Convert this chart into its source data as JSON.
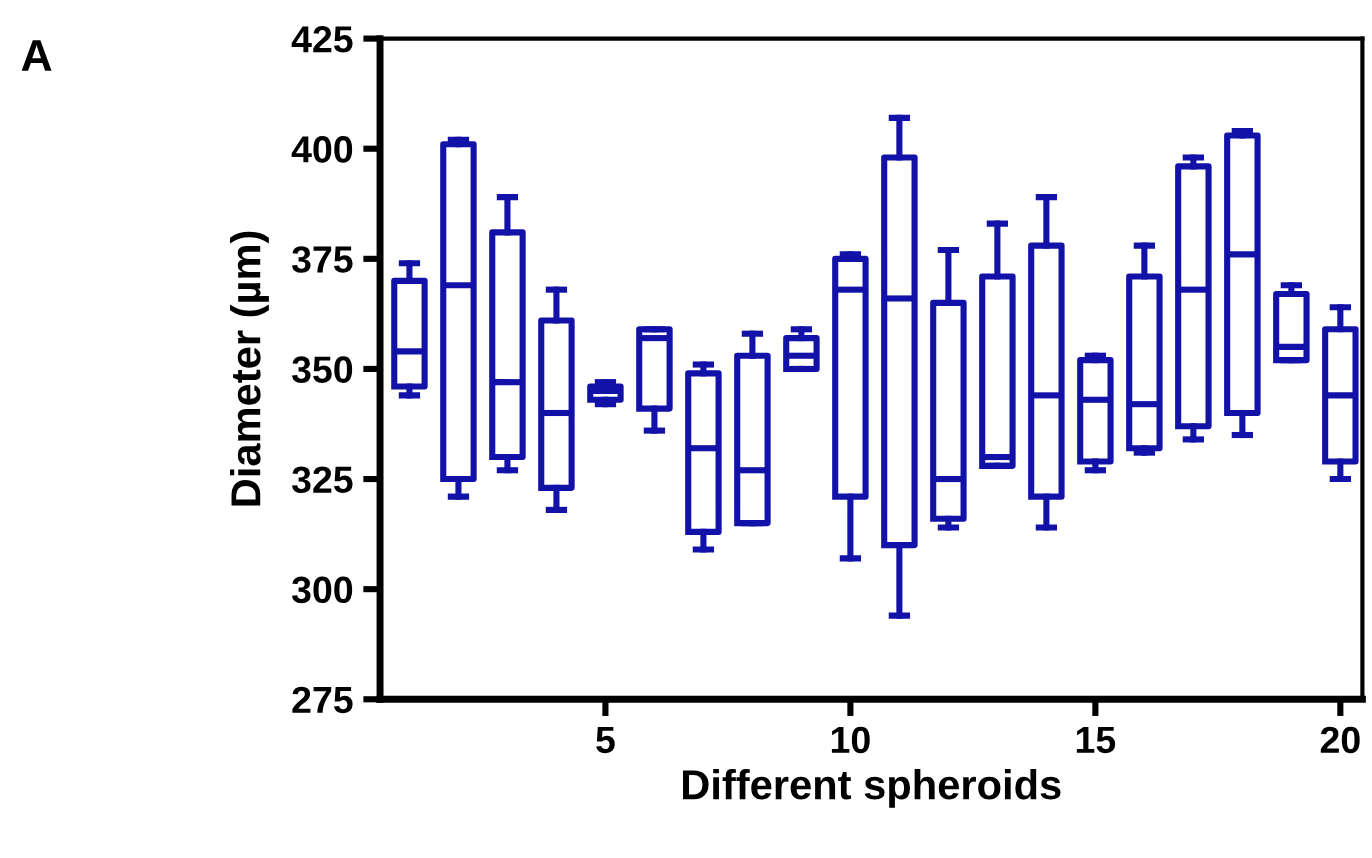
{
  "chart_data": {
    "type": "box",
    "xlabel": "Different spheroids",
    "ylabel": "Diameter (µm)",
    "annotations": [
      "A"
    ],
    "x": [
      1,
      2,
      3,
      4,
      5,
      6,
      7,
      8,
      9,
      10,
      11,
      12,
      13,
      14,
      15,
      16,
      17,
      18,
      19,
      20
    ],
    "xlim": [
      0.4,
      20.45
    ],
    "xticks": [
      5,
      10,
      15,
      20
    ],
    "ylim": [
      275,
      425
    ],
    "yticks": [
      275,
      300,
      325,
      350,
      375,
      400,
      425
    ],
    "grid": false,
    "legend": false,
    "series": [
      {
        "color": "#1212a8",
        "boxes": [
          {
            "low": 344,
            "q1": 346,
            "median": 354,
            "q3": 370,
            "high": 374
          },
          {
            "low": 321,
            "q1": 325,
            "median": 369,
            "q3": 401,
            "high": 402
          },
          {
            "low": 327,
            "q1": 330,
            "median": 347,
            "q3": 381,
            "high": 389
          },
          {
            "low": 318,
            "q1": 323,
            "median": 340,
            "q3": 361,
            "high": 368
          },
          {
            "low": 342,
            "q1": 343,
            "median": 345,
            "q3": 346,
            "high": 347
          },
          {
            "low": 336,
            "q1": 341,
            "median": 357,
            "q3": 359,
            "high": 359
          },
          {
            "low": 309,
            "q1": 313,
            "median": 332,
            "q3": 349,
            "high": 351
          },
          {
            "low": 315,
            "q1": 315,
            "median": 327,
            "q3": 353,
            "high": 358
          },
          {
            "low": 350,
            "q1": 350,
            "median": 353,
            "q3": 357,
            "high": 359
          },
          {
            "low": 307,
            "q1": 321,
            "median": 368,
            "q3": 375,
            "high": 376
          },
          {
            "low": 294,
            "q1": 310,
            "median": 366,
            "q3": 398,
            "high": 407
          },
          {
            "low": 314,
            "q1": 316,
            "median": 325,
            "q3": 365,
            "high": 377
          },
          {
            "low": 328,
            "q1": 328,
            "median": 330,
            "q3": 371,
            "high": 383
          },
          {
            "low": 314,
            "q1": 321,
            "median": 344,
            "q3": 378,
            "high": 389
          },
          {
            "low": 327,
            "q1": 329,
            "median": 343,
            "q3": 352,
            "high": 353
          },
          {
            "low": 331,
            "q1": 332,
            "median": 342,
            "q3": 371,
            "high": 378
          },
          {
            "low": 334,
            "q1": 337,
            "median": 368,
            "q3": 396,
            "high": 398
          },
          {
            "low": 335,
            "q1": 340,
            "median": 376,
            "q3": 403,
            "high": 404
          },
          {
            "low": 352,
            "q1": 352,
            "median": 355,
            "q3": 367,
            "high": 369
          },
          {
            "low": 325,
            "q1": 329,
            "median": 344,
            "q3": 359,
            "high": 364
          }
        ]
      }
    ]
  }
}
